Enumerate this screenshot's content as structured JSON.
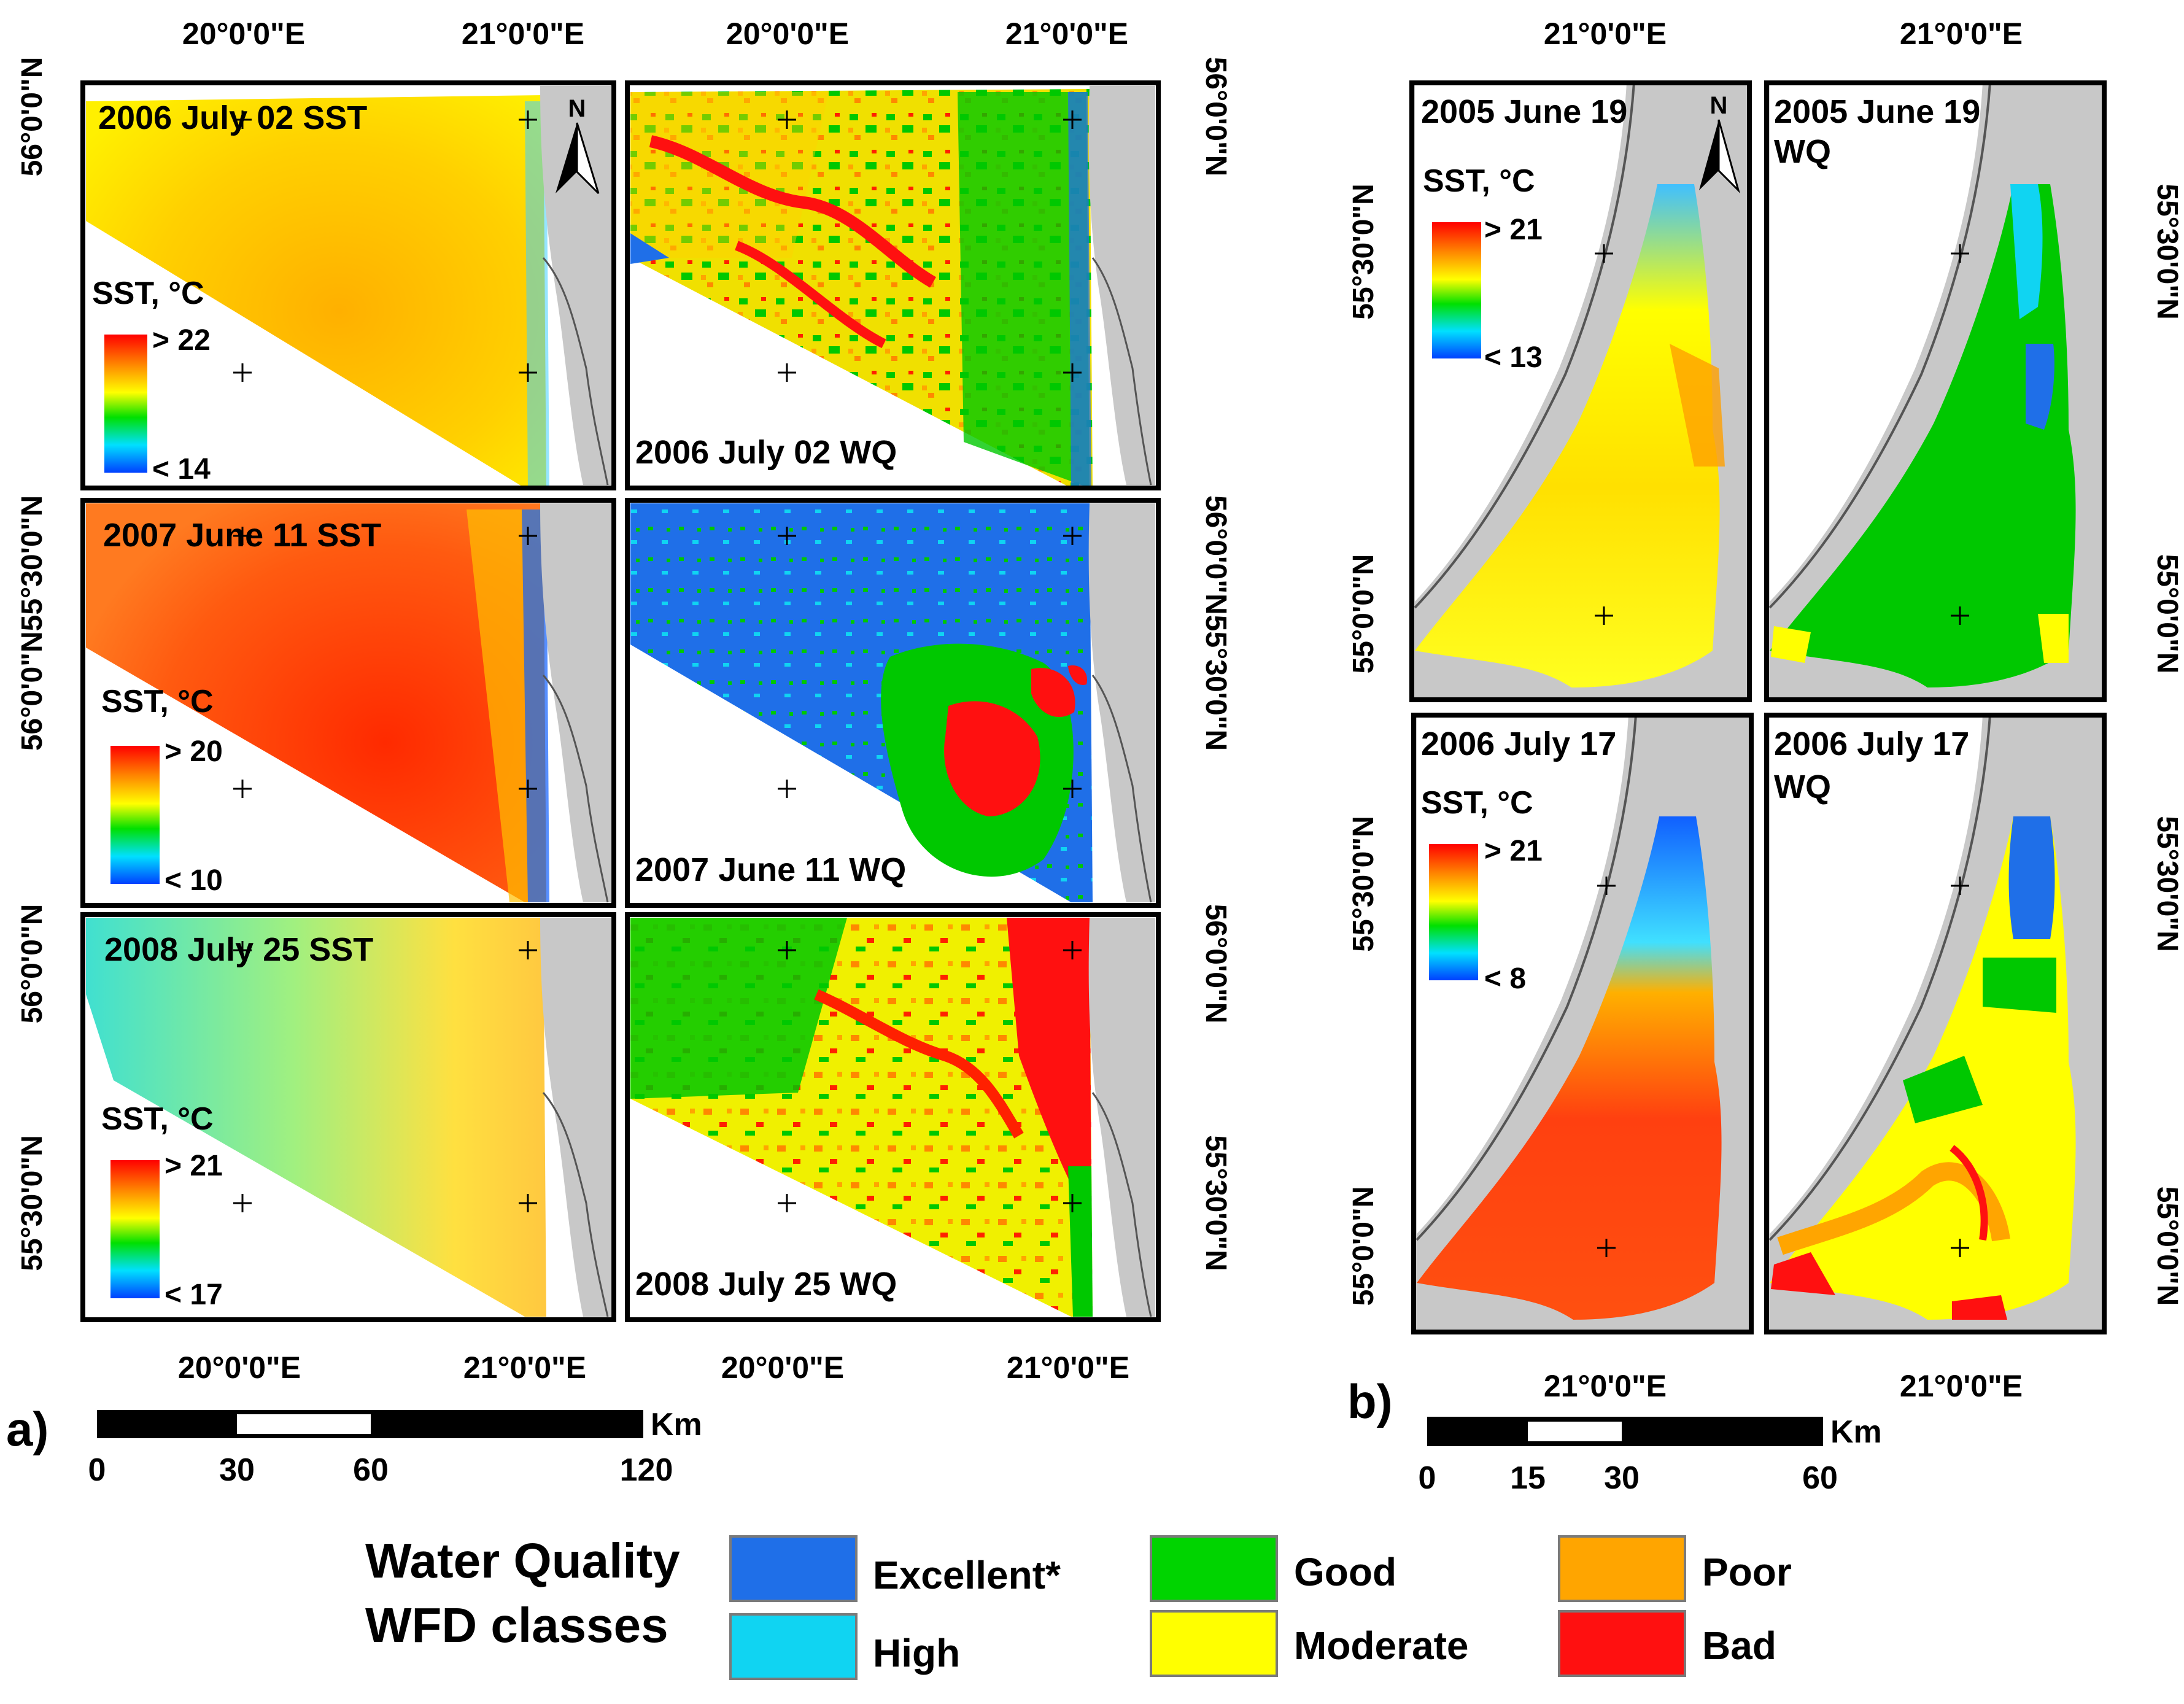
{
  "coords": {
    "lon_20": "20°0'0\"E",
    "lon_21": "21°0'0\"E",
    "lat_5600": "56°0'0\"N",
    "lat_5530": "55°30'0\"N",
    "lat_5500": "55°0'0\"N",
    "lat_pair": "56°0'0\"N55°30'0\"N"
  },
  "panel_a": {
    "label": "a)",
    "maps": [
      {
        "title": "2006 July 02 SST",
        "legend_title": "SST, °C",
        "max": "> 22",
        "min": "< 14"
      },
      {
        "title": "2006 July 02 WQ"
      },
      {
        "title": "2007 June 11 SST",
        "legend_title": "SST, °C",
        "max": "> 20",
        "min": "< 10"
      },
      {
        "title": "2007 June 11 WQ"
      },
      {
        "title": "2008 July 25 SST",
        "legend_title": "SST, °C",
        "max": "> 21",
        "min": "< 17"
      },
      {
        "title": "2008 July 25 WQ"
      }
    ],
    "scalebar": {
      "unit": "Km",
      "ticks": [
        "0",
        "30",
        "60",
        "120"
      ]
    }
  },
  "panel_b": {
    "label": "b)",
    "maps": [
      {
        "title": "2005 June 19",
        "legend_title": "SST, °C",
        "max": "> 21",
        "min": "< 13"
      },
      {
        "title": "2005 June 19",
        "subtitle": "WQ"
      },
      {
        "title": "2006 July 17",
        "legend_title": "SST, °C",
        "max": "> 21",
        "min": "< 8"
      },
      {
        "title": "2006 July 17",
        "subtitle": "WQ"
      }
    ],
    "scalebar": {
      "unit": "Km",
      "ticks": [
        "0",
        "15",
        "30",
        "60"
      ]
    }
  },
  "north_arrow": "N",
  "legend": {
    "title_line1": "Water Quality",
    "title_line2": "WFD classes",
    "classes": [
      {
        "label": "Excellent*",
        "color": "#1f6fe8"
      },
      {
        "label": "High",
        "color": "#10d4f2"
      },
      {
        "label": "Good",
        "color": "#00d400"
      },
      {
        "label": "Moderate",
        "color": "#ffff00"
      },
      {
        "label": "Poor",
        "color": "#ffa500"
      },
      {
        "label": "Bad",
        "color": "#ff1010"
      }
    ]
  },
  "colors": {
    "land": "#c8c8c8",
    "frame": "#000000",
    "sst_ramp": [
      "#ff0000",
      "#ff8800",
      "#ffff00",
      "#00e000",
      "#00e0ff",
      "#0040ff"
    ]
  }
}
